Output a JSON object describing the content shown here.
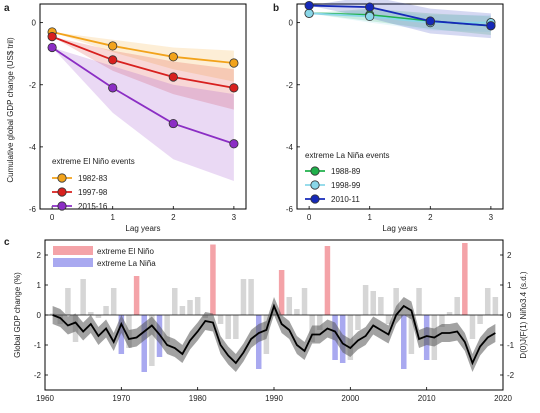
{
  "chart_data": [
    {
      "panel": "a",
      "type": "line",
      "x": [
        0,
        1,
        2,
        3
      ],
      "xticks": [
        "0",
        "1",
        "2",
        "3"
      ],
      "yticks": [
        "0",
        "-2",
        "-4",
        "-6"
      ],
      "xlabel": "Lag years",
      "ylabel": "Cumulative global GDP change (US$ tril)",
      "xlim": [
        -0.2,
        3.2
      ],
      "ylim": [
        -6,
        0.6
      ],
      "legend_title": "extreme El Niño events",
      "legend_position": "bottom-left",
      "series": [
        {
          "name": "1982-83",
          "color": "#f2a31b",
          "values": [
            -0.3,
            -0.75,
            -1.1,
            -1.3
          ],
          "lower": [
            -0.3,
            -0.95,
            -1.5,
            -1.9
          ],
          "upper": [
            -0.3,
            -0.55,
            -0.8,
            -0.9
          ]
        },
        {
          "name": "1997-98",
          "color": "#d8201e",
          "values": [
            -0.45,
            -1.2,
            -1.75,
            -2.1
          ],
          "lower": [
            -0.45,
            -1.55,
            -2.3,
            -2.8
          ],
          "upper": [
            -0.45,
            -0.9,
            -1.25,
            -1.5
          ]
        },
        {
          "name": "2015-16",
          "color": "#8b2ec4",
          "values": [
            -0.8,
            -2.1,
            -3.25,
            -3.9
          ],
          "lower": [
            -0.8,
            -2.9,
            -4.4,
            -5.1
          ],
          "upper": [
            -0.8,
            -1.4,
            -2.0,
            -2.3
          ]
        }
      ]
    },
    {
      "panel": "b",
      "type": "line",
      "x": [
        0,
        1,
        2,
        3
      ],
      "xticks": [
        "0",
        "1",
        "2",
        "3"
      ],
      "yticks": [
        "0",
        "-2",
        "-4",
        "-6"
      ],
      "xlabel": "Lag years",
      "ylabel": "",
      "xlim": [
        -0.2,
        3.2
      ],
      "ylim": [
        -6,
        0.6
      ],
      "legend_title": "extreme La Niña events",
      "legend_position": "bottom-left",
      "series": [
        {
          "name": "1988-89",
          "color": "#20b04b",
          "values": [
            0.3,
            0.25,
            0.05,
            -0.1
          ],
          "lower": [
            0.3,
            0.05,
            -0.2,
            -0.4
          ],
          "upper": [
            0.3,
            0.45,
            0.3,
            0.2
          ]
        },
        {
          "name": "1998-99",
          "color": "#8ad7e8",
          "values": [
            0.3,
            0.2,
            0.0,
            0.0
          ],
          "lower": [
            0.3,
            0.0,
            -0.25,
            -0.3
          ],
          "upper": [
            0.3,
            0.4,
            0.25,
            0.25
          ]
        },
        {
          "name": "2010-11",
          "color": "#1629b8",
          "values": [
            0.55,
            0.5,
            0.05,
            -0.1
          ],
          "lower": [
            0.55,
            0.15,
            -0.35,
            -0.5
          ],
          "upper": [
            0.55,
            0.85,
            0.45,
            0.3
          ]
        }
      ]
    },
    {
      "panel": "c",
      "type": "bar+line",
      "xlim": [
        1960,
        2020
      ],
      "xticks": [
        "1960",
        "1970",
        "1980",
        "1990",
        "2000",
        "2010",
        "2020"
      ],
      "ylim": [
        -2.5,
        2.5
      ],
      "yticks": [
        "2",
        "1",
        "0",
        "-1",
        "-2"
      ],
      "ylabel_left": "Global GDP change (%)",
      "ylabel_right": "D(0)J(F(1) Niño3.4 (s.d.)",
      "legend_position": "top-left",
      "legend": [
        {
          "name": "extreme El Niño",
          "color": "#f4a3a8"
        },
        {
          "name": "extreme La Niña",
          "color": "#a9a9f0"
        }
      ],
      "elnino_bars": {
        "years": [
          1972,
          1982,
          1991,
          1997,
          2015
        ],
        "values": [
          1.3,
          2.35,
          1.5,
          2.3,
          2.4
        ]
      },
      "lanina_bars": {
        "years": [
          1970,
          1973,
          1975,
          1988,
          1998,
          1999,
          2007,
          2010
        ],
        "values": [
          -1.3,
          -1.9,
          -1.4,
          -1.8,
          -1.5,
          -1.6,
          -1.8,
          -1.5
        ]
      },
      "other_bars": {
        "years": [
          1961,
          1962,
          1963,
          1964,
          1965,
          1966,
          1967,
          1968,
          1969,
          1971,
          1974,
          1976,
          1977,
          1978,
          1979,
          1980,
          1981,
          1983,
          1984,
          1985,
          1986,
          1987,
          1989,
          1990,
          1992,
          1993,
          1994,
          1995,
          1996,
          2000,
          2001,
          2002,
          2003,
          2004,
          2005,
          2006,
          2008,
          2009,
          2011,
          2012,
          2013,
          2014,
          2016,
          2017,
          2018,
          2019
        ],
        "values": [
          0.05,
          -0.3,
          0.9,
          -0.9,
          1.2,
          0.1,
          -0.1,
          0.3,
          0.9,
          -1.1,
          -1.7,
          -0.9,
          0.9,
          0.3,
          0.5,
          0.6,
          -0.1,
          -0.3,
          -0.8,
          -0.8,
          1.2,
          1.2,
          -1.3,
          0.2,
          0.6,
          0.2,
          0.9,
          -0.9,
          -0.5,
          -1.5,
          -0.5,
          1.0,
          0.8,
          0.6,
          -0.3,
          0.9,
          -1.3,
          0.9,
          -1.5,
          -0.4,
          0.1,
          0.6,
          -0.8,
          -0.3,
          0.9,
          0.6
        ]
      },
      "gdp_line": {
        "years": [
          1961,
          1962,
          1963,
          1964,
          1965,
          1966,
          1967,
          1968,
          1969,
          1970,
          1971,
          1972,
          1973,
          1974,
          1975,
          1976,
          1977,
          1978,
          1979,
          1980,
          1981,
          1982,
          1983,
          1984,
          1985,
          1986,
          1987,
          1988,
          1989,
          1990,
          1991,
          1992,
          1993,
          1994,
          1995,
          1996,
          1997,
          1998,
          1999,
          2000,
          2001,
          2002,
          2003,
          2004,
          2005,
          2006,
          2007,
          2008,
          2009,
          2010,
          2011,
          2012,
          2013,
          2014,
          2015,
          2016,
          2017,
          2018,
          2019
        ],
        "values": [
          0.0,
          -0.1,
          -0.35,
          -0.25,
          -0.55,
          -0.3,
          -0.7,
          -0.45,
          -0.9,
          -0.3,
          -0.8,
          -0.75,
          -0.55,
          -0.35,
          -0.65,
          -1.0,
          -1.1,
          -1.3,
          -0.85,
          -0.55,
          -0.2,
          -0.25,
          -1.0,
          -1.35,
          -1.6,
          -1.25,
          -0.8,
          -0.6,
          -0.5,
          0.3,
          -0.3,
          -0.5,
          -1.0,
          -1.2,
          -0.65,
          -0.65,
          -0.45,
          -0.55,
          -0.95,
          -1.1,
          -0.85,
          -0.7,
          -0.35,
          -0.5,
          -0.65,
          0.0,
          0.3,
          0.15,
          -0.8,
          -0.7,
          -0.75,
          -0.6,
          -0.6,
          -0.55,
          -0.9,
          -1.6,
          -1.05,
          -0.75,
          -0.6
        ],
        "ci_halfwidth": 0.3
      }
    }
  ]
}
